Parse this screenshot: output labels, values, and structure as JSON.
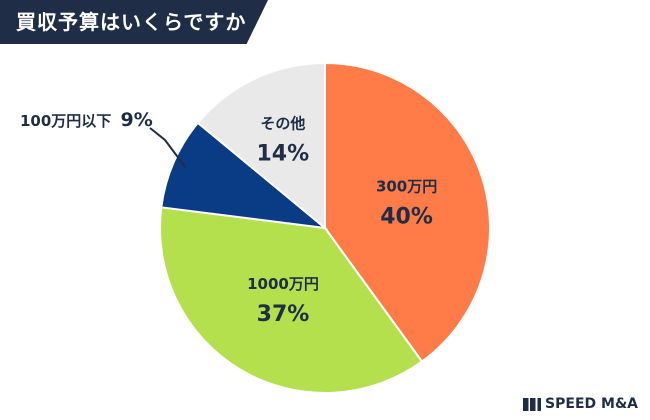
{
  "header": {
    "title": "買収予算はいくらですか"
  },
  "brand": {
    "name": "SPEED M&A"
  },
  "chart_data": {
    "type": "pie",
    "title": "買収予算はいくらですか",
    "slices": [
      {
        "label": "300万円",
        "value": 40,
        "value_label": "40%",
        "color": "#ff7b47",
        "label_color": "#1f2e46"
      },
      {
        "label": "1000万円",
        "value": 37,
        "value_label": "37%",
        "color": "#b5e04e",
        "label_color": "#1f2e46"
      },
      {
        "label": "100万円以下",
        "value": 9,
        "value_label": "9%",
        "color": "#0a3c85",
        "label_color": "#1f2e46",
        "callout": true
      },
      {
        "label": "その他",
        "value": 14,
        "value_label": "14%",
        "color": "#e9e9ea",
        "label_color": "#1f2e46"
      }
    ],
    "start_angle_deg": 0,
    "direction": "clockwise"
  }
}
